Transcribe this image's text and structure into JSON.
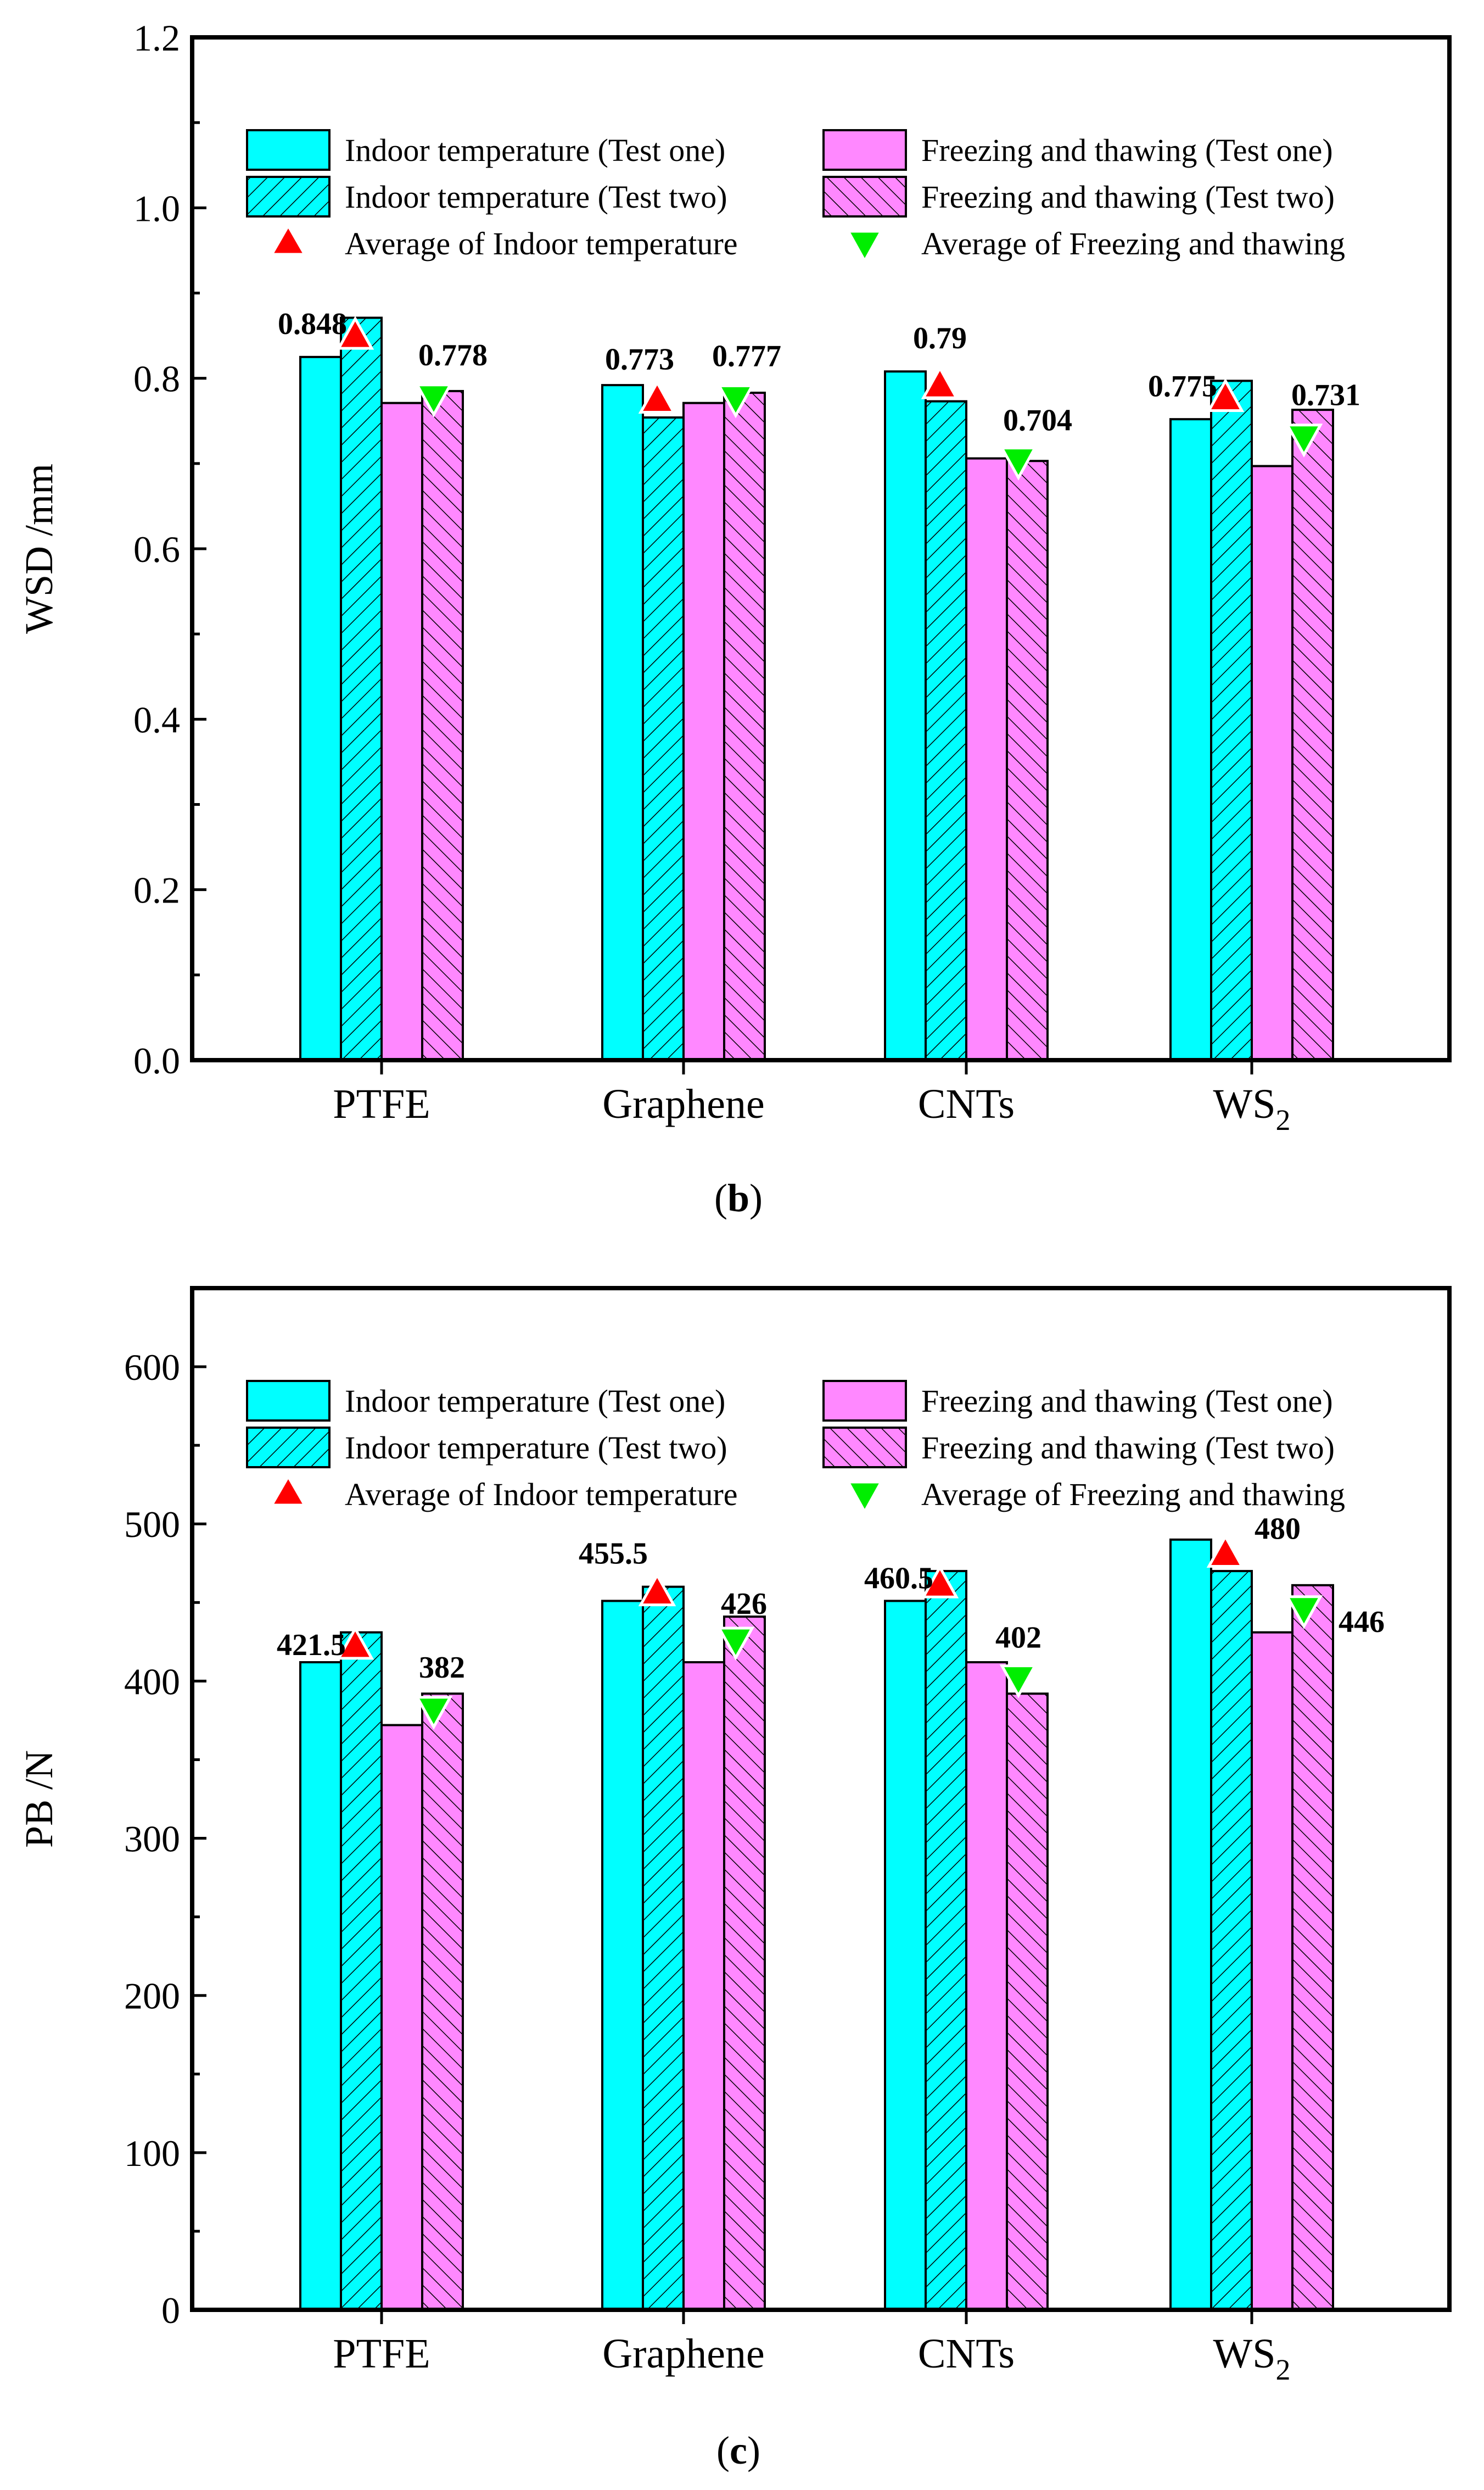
{
  "colors": {
    "indoor": "#00FFFF",
    "freeze": "#FF88FF",
    "avg_indoor": "#FF0000",
    "avg_freeze": "#00EE00"
  },
  "legend": {
    "indoor_one": "Indoor temperature (Test one)",
    "indoor_two": "Indoor temperature (Test two)",
    "freeze_one": "Freezing and thawing (Test one)",
    "freeze_two": "Freezing and thawing (Test two)",
    "avg_indoor": "Average of Indoor temperature",
    "avg_freeze": "Average of Freezing and thawing"
  },
  "chart_data": [
    {
      "type": "bar",
      "panel_label": "b",
      "ylabel": "WSD /mm",
      "ylim": [
        0,
        1.2
      ],
      "yticks": [
        "0.0",
        "0.2",
        "0.4",
        "0.6",
        "0.8",
        "1.0",
        "1.2"
      ],
      "categories": [
        "PTFE",
        "Graphene",
        "CNTs",
        "WS"
      ],
      "category_subscript": [
        "",
        "",
        "",
        "2"
      ],
      "series": [
        {
          "name": "Indoor temperature (Test one)",
          "values": [
            0.825,
            0.792,
            0.808,
            0.752
          ]
        },
        {
          "name": "Indoor temperature (Test two)",
          "values": [
            0.871,
            0.754,
            0.773,
            0.797
          ]
        },
        {
          "name": "Freezing and thawing (Test one)",
          "values": [
            0.771,
            0.771,
            0.706,
            0.697
          ]
        },
        {
          "name": "Freezing and thawing (Test two)",
          "values": [
            0.785,
            0.783,
            0.703,
            0.763
          ]
        }
      ],
      "averages": {
        "indoor": [
          0.848,
          0.773,
          0.79,
          0.775
        ],
        "freeze": [
          0.778,
          0.777,
          0.704,
          0.731
        ]
      },
      "avg_labels": {
        "indoor": [
          "0.848",
          "0.773",
          "0.79",
          "0.775"
        ],
        "freeze": [
          "0.778",
          "0.777",
          "0.704",
          "0.731"
        ]
      }
    },
    {
      "type": "bar",
      "panel_label": "c",
      "ylabel": "PB /N",
      "ylim": [
        0,
        650
      ],
      "yticks": [
        "0",
        "100",
        "200",
        "300",
        "400",
        "500",
        "600"
      ],
      "categories": [
        "PTFE",
        "Graphene",
        "CNTs",
        "WS"
      ],
      "category_subscript": [
        "",
        "",
        "",
        "2"
      ],
      "series": [
        {
          "name": "Indoor temperature (Test one)",
          "values": [
            412,
            451,
            451,
            490
          ]
        },
        {
          "name": "Indoor temperature (Test two)",
          "values": [
            431,
            460,
            470,
            470
          ]
        },
        {
          "name": "Freezing and thawing (Test one)",
          "values": [
            372,
            412,
            412,
            431
          ]
        },
        {
          "name": "Freezing and thawing (Test two)",
          "values": [
            392,
            441,
            392,
            461
          ]
        }
      ],
      "averages": {
        "indoor": [
          421.5,
          455.5,
          460.5,
          480
        ],
        "freeze": [
          382,
          426,
          402,
          446
        ]
      },
      "avg_labels": {
        "indoor": [
          "421.5",
          "455.5",
          "460.5",
          "480"
        ],
        "freeze": [
          "382",
          "426",
          "402",
          "446"
        ]
      }
    }
  ]
}
